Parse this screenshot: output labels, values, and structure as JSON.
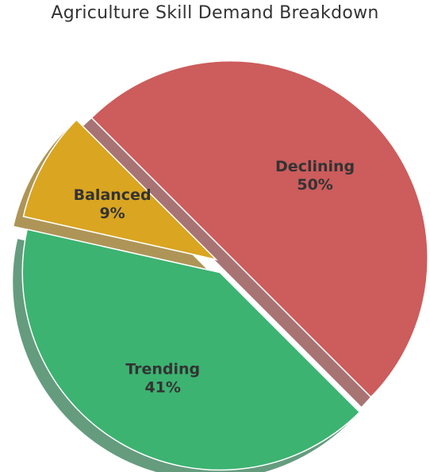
{
  "chart_data": {
    "type": "pie",
    "title": "Agriculture Skill Demand Breakdown",
    "categories": [
      "Declining",
      "Trending",
      "Balanced"
    ],
    "values": [
      50,
      41,
      9
    ],
    "labels": [
      "50%",
      "41%",
      "9%"
    ],
    "colors": [
      "#cd5c5c",
      "#3cb371",
      "#daa520"
    ],
    "exploded": true,
    "shadow": true,
    "start_angle_deg": -45
  }
}
